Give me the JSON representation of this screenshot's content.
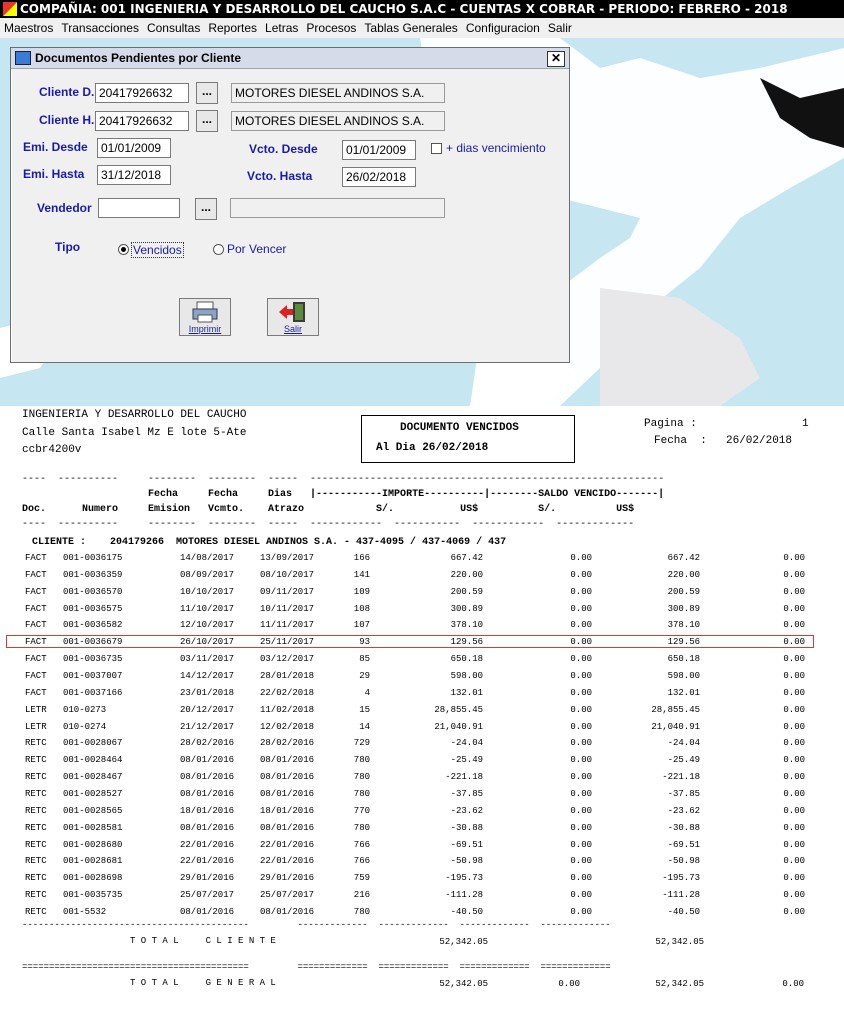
{
  "titlebar": {
    "text": "COMPAÑIA: 001 INGENIERIA Y DESARROLLO DEL CAUCHO S.A.C  -  CUENTAS X COBRAR  -  PERIODO: FEBRERO - 2018"
  },
  "menu": [
    "Maestros",
    "Transacciones",
    "Consultas",
    "Reportes",
    "Letras",
    "Procesos",
    "Tablas Generales",
    "Configuracion",
    "Salir"
  ],
  "dialog": {
    "title": "Documentos Pendientes por Cliente",
    "close": "✕",
    "cliente_d_label": "Cliente D.",
    "cliente_d_value": "20417926632",
    "cliente_d_name": "MOTORES DIESEL ANDINOS S.A.",
    "cliente_h_label": "Cliente H.",
    "cliente_h_value": "20417926632",
    "cliente_h_name": "MOTORES DIESEL ANDINOS S.A.",
    "emi_desde_label": "Emi. Desde",
    "emi_desde_value": "01/01/2009",
    "emi_hasta_label": "Emi. Hasta",
    "emi_hasta_value": "31/12/2018",
    "vcto_desde_label": "Vcto. Desde",
    "vcto_desde_value": "01/01/2009",
    "vcto_hasta_label": "Vcto. Hasta",
    "vcto_hasta_value": "26/02/2018",
    "dias_label": "+ dias vencimiento",
    "vendedor_label": "Vendedor",
    "vendedor_value": "",
    "vendedor_name": "",
    "tipo_label": "Tipo",
    "opt_vencidos": "Vencidos",
    "opt_porvencer": "Por Vencer",
    "btn_imprimir": "Imprimir",
    "btn_salir": "Salir",
    "dots": "..."
  },
  "report": {
    "company_line1": "INGENIERIA Y DESARROLLO DEL CAUCHO",
    "company_line2": "Calle Santa Isabel Mz E lote 5-Ate",
    "company_line3": "ccbr4200v",
    "doc_title": "DOCUMENTO VENCIDOS",
    "doc_date": "Al Dia 26/02/2018",
    "pagina_label": "Pagina :",
    "pagina_value": "1",
    "fecha_label": "Fecha  :",
    "fecha_value": "26/02/2018",
    "sep_top": "----  ----------     --------  --------  -----  -----------------------------------------------------------",
    "col_hdr1": "                     Fecha     Fecha     Dias   |-----------IMPORTE----------|--------SALDO VENCIDO-------|",
    "col_hdr2": "Doc.      Numero     Emision   Vcmto.    Atrazo            S/.           US$          S/.          US$",
    "sep_bot": "----  ----------     --------  --------  -----  ------------  -----------  ------------  -------------",
    "cliente_line": "CLIENTE :    204179266  MOTORES DIESEL ANDINOS S.A. - 437-4095 / 437-4069 / 437",
    "rows": [
      {
        "doc": "FACT",
        "num": "001-0036175",
        "emi": "14/08/2017",
        "vto": "13/09/2017",
        "dias": "166",
        "imp_s": "667.42",
        "imp_u": "0.00",
        "sal_s": "667.42",
        "sal_u": "0.00"
      },
      {
        "doc": "FACT",
        "num": "001-0036359",
        "emi": "08/09/2017",
        "vto": "08/10/2017",
        "dias": "141",
        "imp_s": "220.00",
        "imp_u": "0.00",
        "sal_s": "220.00",
        "sal_u": "0.00"
      },
      {
        "doc": "FACT",
        "num": "001-0036570",
        "emi": "10/10/2017",
        "vto": "09/11/2017",
        "dias": "109",
        "imp_s": "200.59",
        "imp_u": "0.00",
        "sal_s": "200.59",
        "sal_u": "0.00"
      },
      {
        "doc": "FACT",
        "num": "001-0036575",
        "emi": "11/10/2017",
        "vto": "10/11/2017",
        "dias": "108",
        "imp_s": "300.89",
        "imp_u": "0.00",
        "sal_s": "300.89",
        "sal_u": "0.00"
      },
      {
        "doc": "FACT",
        "num": "001-0036582",
        "emi": "12/10/2017",
        "vto": "11/11/2017",
        "dias": "107",
        "imp_s": "378.10",
        "imp_u": "0.00",
        "sal_s": "378.10",
        "sal_u": "0.00"
      },
      {
        "doc": "FACT",
        "num": "001-0036679",
        "emi": "26/10/2017",
        "vto": "25/11/2017",
        "dias": "93",
        "imp_s": "129.56",
        "imp_u": "0.00",
        "sal_s": "129.56",
        "sal_u": "0.00"
      },
      {
        "doc": "FACT",
        "num": "001-0036735",
        "emi": "03/11/2017",
        "vto": "03/12/2017",
        "dias": "85",
        "imp_s": "650.18",
        "imp_u": "0.00",
        "sal_s": "650.18",
        "sal_u": "0.00"
      },
      {
        "doc": "FACT",
        "num": "001-0037007",
        "emi": "14/12/2017",
        "vto": "28/01/2018",
        "dias": "29",
        "imp_s": "598.00",
        "imp_u": "0.00",
        "sal_s": "598.00",
        "sal_u": "0.00"
      },
      {
        "doc": "FACT",
        "num": "001-0037166",
        "emi": "23/01/2018",
        "vto": "22/02/2018",
        "dias": "4",
        "imp_s": "132.01",
        "imp_u": "0.00",
        "sal_s": "132.01",
        "sal_u": "0.00"
      },
      {
        "doc": "LETR",
        "num": "010-0273",
        "emi": "20/12/2017",
        "vto": "11/02/2018",
        "dias": "15",
        "imp_s": "28,855.45",
        "imp_u": "0.00",
        "sal_s": "28,855.45",
        "sal_u": "0.00"
      },
      {
        "doc": "LETR",
        "num": "010-0274",
        "emi": "21/12/2017",
        "vto": "12/02/2018",
        "dias": "14",
        "imp_s": "21,040.91",
        "imp_u": "0.00",
        "sal_s": "21,040.91",
        "sal_u": "0.00"
      },
      {
        "doc": "RETC",
        "num": "001-0028067",
        "emi": "28/02/2016",
        "vto": "28/02/2016",
        "dias": "729",
        "imp_s": "-24.04",
        "imp_u": "0.00",
        "sal_s": "-24.04",
        "sal_u": "0.00"
      },
      {
        "doc": "RETC",
        "num": "001-0028464",
        "emi": "08/01/2016",
        "vto": "08/01/2016",
        "dias": "780",
        "imp_s": "-25.49",
        "imp_u": "0.00",
        "sal_s": "-25.49",
        "sal_u": "0.00"
      },
      {
        "doc": "RETC",
        "num": "001-0028467",
        "emi": "08/01/2016",
        "vto": "08/01/2016",
        "dias": "780",
        "imp_s": "-221.18",
        "imp_u": "0.00",
        "sal_s": "-221.18",
        "sal_u": "0.00"
      },
      {
        "doc": "RETC",
        "num": "001-0028527",
        "emi": "08/01/2016",
        "vto": "08/01/2016",
        "dias": "780",
        "imp_s": "-37.85",
        "imp_u": "0.00",
        "sal_s": "-37.85",
        "sal_u": "0.00"
      },
      {
        "doc": "RETC",
        "num": "001-0028565",
        "emi": "18/01/2016",
        "vto": "18/01/2016",
        "dias": "770",
        "imp_s": "-23.62",
        "imp_u": "0.00",
        "sal_s": "-23.62",
        "sal_u": "0.00"
      },
      {
        "doc": "RETC",
        "num": "001-0028581",
        "emi": "08/01/2016",
        "vto": "08/01/2016",
        "dias": "780",
        "imp_s": "-30.88",
        "imp_u": "0.00",
        "sal_s": "-30.88",
        "sal_u": "0.00"
      },
      {
        "doc": "RETC",
        "num": "001-0028680",
        "emi": "22/01/2016",
        "vto": "22/01/2016",
        "dias": "766",
        "imp_s": "-69.51",
        "imp_u": "0.00",
        "sal_s": "-69.51",
        "sal_u": "0.00"
      },
      {
        "doc": "RETC",
        "num": "001-0028681",
        "emi": "22/01/2016",
        "vto": "22/01/2016",
        "dias": "766",
        "imp_s": "-50.98",
        "imp_u": "0.00",
        "sal_s": "-50.98",
        "sal_u": "0.00"
      },
      {
        "doc": "RETC",
        "num": "001-0028698",
        "emi": "29/01/2016",
        "vto": "29/01/2016",
        "dias": "759",
        "imp_s": "-195.73",
        "imp_u": "0.00",
        "sal_s": "-195.73",
        "sal_u": "0.00"
      },
      {
        "doc": "RETC",
        "num": "001-0035735",
        "emi": "25/07/2017",
        "vto": "25/07/2017",
        "dias": "216",
        "imp_s": "-111.28",
        "imp_u": "0.00",
        "sal_s": "-111.28",
        "sal_u": "0.00"
      },
      {
        "doc": "RETC",
        "num": "001-5532",
        "emi": "08/01/2016",
        "vto": "08/01/2016",
        "dias": "780",
        "imp_s": "-40.50",
        "imp_u": "0.00",
        "sal_s": "-40.50",
        "sal_u": "0.00"
      }
    ],
    "sep_total": "------------------------------------------         -------------  -------------  -------------  -------------",
    "total_cliente_label": "T O T A L     C L I E N T E",
    "total_cliente_s": "52,342.05",
    "total_cliente_sal": "52,342.05",
    "sep_general": "==========================================         =============  =============  =============  =============",
    "total_general_label": "T O T A L     G E N E R A L",
    "total_general_s": "52,342.05",
    "total_general_u": "0.00",
    "total_general_sal": "52,342.05",
    "total_general_salu": "0.00"
  }
}
